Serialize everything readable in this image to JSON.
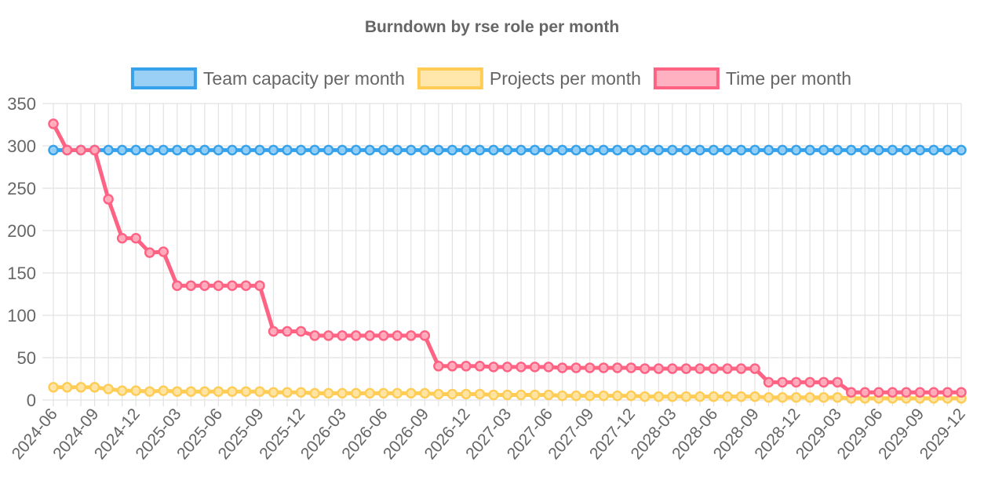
{
  "chart_data": {
    "type": "line",
    "title": "Burndown by rse role per month",
    "legend_position": "top",
    "grid": true,
    "ylim": [
      0,
      350
    ],
    "y_ticks": [
      0,
      50,
      100,
      150,
      200,
      250,
      300,
      350
    ],
    "x": [
      "2024-06",
      "2024-07",
      "2024-08",
      "2024-09",
      "2024-10",
      "2024-11",
      "2024-12",
      "2025-01",
      "2025-02",
      "2025-03",
      "2025-04",
      "2025-05",
      "2025-06",
      "2025-07",
      "2025-08",
      "2025-09",
      "2025-10",
      "2025-11",
      "2025-12",
      "2026-01",
      "2026-02",
      "2026-03",
      "2026-04",
      "2026-05",
      "2026-06",
      "2026-07",
      "2026-08",
      "2026-09",
      "2026-10",
      "2026-11",
      "2026-12",
      "2027-01",
      "2027-02",
      "2027-03",
      "2027-04",
      "2027-05",
      "2027-06",
      "2027-07",
      "2027-08",
      "2027-09",
      "2027-10",
      "2027-11",
      "2027-12",
      "2028-01",
      "2028-02",
      "2028-03",
      "2028-04",
      "2028-05",
      "2028-06",
      "2028-07",
      "2028-08",
      "2028-09",
      "2028-10",
      "2028-11",
      "2028-12",
      "2029-01",
      "2029-02",
      "2029-03",
      "2029-04",
      "2029-05",
      "2029-06",
      "2029-07",
      "2029-08",
      "2029-09",
      "2029-10",
      "2029-11",
      "2029-12"
    ],
    "x_tick_labels": [
      "2024-06",
      "2024-09",
      "2024-12",
      "2025-03",
      "2025-06",
      "2025-09",
      "2025-12",
      "2026-03",
      "2026-06",
      "2026-09",
      "2026-12",
      "2027-03",
      "2027-06",
      "2027-09",
      "2027-12",
      "2028-03",
      "2028-06",
      "2028-09",
      "2028-12",
      "2029-03",
      "2029-06",
      "2029-09",
      "2029-12"
    ],
    "series": [
      {
        "name": "Team capacity per month",
        "color": "#36a2eb",
        "fill": "#9ad0f5",
        "values": [
          295,
          295,
          295,
          295,
          295,
          295,
          295,
          295,
          295,
          295,
          295,
          295,
          295,
          295,
          295,
          295,
          295,
          295,
          295,
          295,
          295,
          295,
          295,
          295,
          295,
          295,
          295,
          295,
          295,
          295,
          295,
          295,
          295,
          295,
          295,
          295,
          295,
          295,
          295,
          295,
          295,
          295,
          295,
          295,
          295,
          295,
          295,
          295,
          295,
          295,
          295,
          295,
          295,
          295,
          295,
          295,
          295,
          295,
          295,
          295,
          295,
          295,
          295,
          295,
          295,
          295,
          295
        ]
      },
      {
        "name": "Projects per month",
        "color": "#ffcd56",
        "fill": "#ffe6aa",
        "values": [
          15,
          15,
          15,
          15,
          13,
          11,
          11,
          10,
          11,
          10,
          10,
          10,
          10,
          10,
          10,
          10,
          9,
          9,
          9,
          8,
          8,
          8,
          8,
          8,
          8,
          8,
          8,
          8,
          7,
          7,
          7,
          7,
          6,
          6,
          6,
          6,
          6,
          5,
          5,
          5,
          5,
          5,
          5,
          4,
          4,
          4,
          4,
          4,
          4,
          4,
          4,
          4,
          3,
          3,
          3,
          3,
          3,
          3,
          2,
          2,
          2,
          2,
          2,
          2,
          2,
          2,
          2
        ]
      },
      {
        "name": "Time per month",
        "color": "#ff6384",
        "fill": "#ffb1c1",
        "values": [
          326,
          295,
          295,
          295,
          237,
          191,
          191,
          174,
          175,
          135,
          135,
          135,
          135,
          135,
          135,
          135,
          81,
          81,
          81,
          76,
          76,
          76,
          76,
          76,
          76,
          76,
          76,
          76,
          40,
          40,
          40,
          40,
          39,
          39,
          39,
          39,
          39,
          38,
          38,
          38,
          38,
          38,
          38,
          37,
          37,
          37,
          37,
          37,
          37,
          37,
          37,
          37,
          21,
          21,
          21,
          21,
          21,
          21,
          9,
          9,
          9,
          9,
          9,
          9,
          9,
          9,
          9
        ]
      }
    ]
  }
}
